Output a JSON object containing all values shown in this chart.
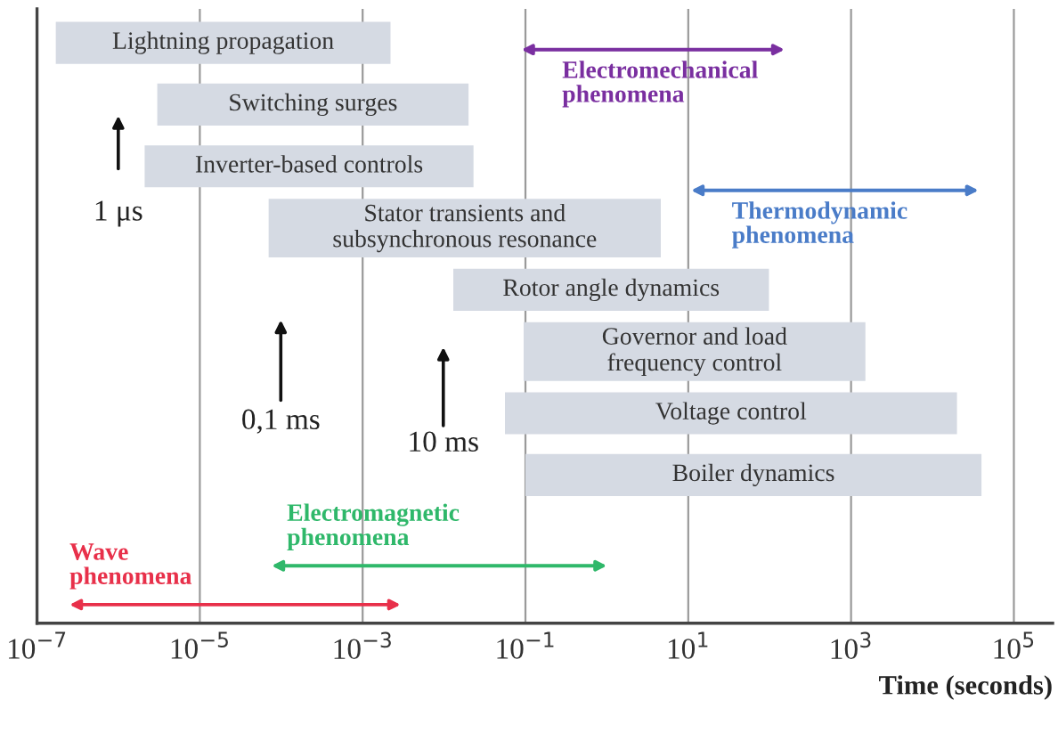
{
  "chart_data": {
    "type": "bar",
    "orientation": "horizontal",
    "log": "x",
    "categories": [
      "Lightning propagation",
      "Switching surges",
      "Inverter-based controls",
      "Stator transients and\nsubsynchronous resonance",
      "Rotor angle dynamics",
      "Governor and load\nfrequency control",
      "Voltage control",
      "Boiler dynamics"
    ],
    "base": [
      1.7e-07,
      3e-06,
      2.1e-06,
      7e-05,
      0.013,
      0.095,
      0.056,
      0.1
    ],
    "values": [
      0.0022,
      0.02,
      0.023,
      4.6,
      98,
      1500,
      20000,
      40000
    ],
    "color": "#d5dae3",
    "xlabel": "Time (seconds)",
    "xlim": [
      1e-07,
      300000.0
    ],
    "xticks": [
      {
        "value": 1e-07,
        "label": "10$^{−7}$"
      },
      {
        "value": 1e-05,
        "label": "10$^{−5}$"
      },
      {
        "value": 0.001,
        "label": "10$^{−3}$"
      },
      {
        "value": 0.1,
        "label": "10$^{−1}$"
      },
      {
        "value": 10,
        "label": "10$^{1}$"
      },
      {
        "value": 1000,
        "label": "10$^{3}$"
      },
      {
        "value": 100000,
        "label": "10$^{5}$"
      }
    ],
    "grid": "x",
    "tick_labels": "x",
    "annotations": [
      "1 μs",
      "0,1 ms",
      "10 ms",
      "Wave\nphenomena",
      "Electromagnetic\nphenomena",
      "Electromechanical\nphenomena",
      "Thermodynamic\nphenomena"
    ]
  }
}
